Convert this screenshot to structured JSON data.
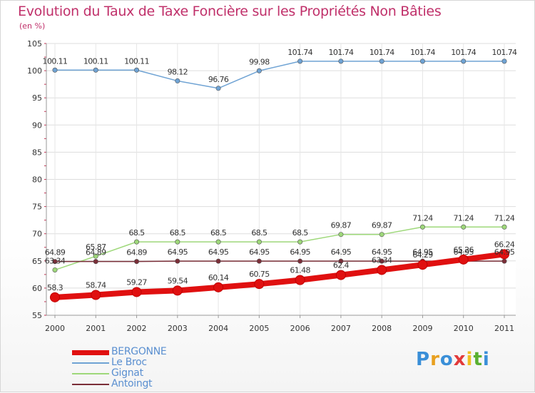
{
  "title": "Evolution du Taux de Taxe Foncière sur les Propriétés Non Bâties",
  "subtitle": "(en %)",
  "logo": {
    "text": "Proxiti",
    "letters": [
      "P",
      "r",
      "o",
      "x",
      "i",
      "t",
      "i"
    ],
    "colors": [
      "#3a8fd8",
      "#e8a020",
      "#3a8fd8",
      "#e23a3a",
      "#f0c020",
      "#5ab030",
      "#3a8fd8"
    ]
  },
  "chart_data": {
    "type": "line",
    "title": "Evolution du Taux de Taxe Foncière sur les Propriétés Non Bâties",
    "ylabel": "(en %)",
    "xlabel": "",
    "x": [
      "2000",
      "2001",
      "2002",
      "2003",
      "2004",
      "2005",
      "2006",
      "2007",
      "2008",
      "2009",
      "2010",
      "2011"
    ],
    "ylim": [
      55,
      105
    ],
    "yticks": [
      "55",
      "60",
      "65",
      "70",
      "75",
      "80",
      "85",
      "90",
      "95",
      "100",
      "105"
    ],
    "grid": true,
    "legend": "bottom-left",
    "series": [
      {
        "name": "BERGONNE",
        "color": "#e01010",
        "values": [
          58.3,
          58.74,
          59.27,
          59.54,
          60.14,
          60.75,
          61.48,
          62.4,
          63.34,
          64.29,
          65.26,
          66.24
        ],
        "labels": [
          "58.3",
          "58.74",
          "59.27",
          "59.54",
          "60.14",
          "60.75",
          "61.48",
          "62.4",
          "63.34",
          "64.29",
          "65.26",
          "66.24"
        ]
      },
      {
        "name": "Le Broc",
        "color": "#6fa3d4",
        "values": [
          100.11,
          100.11,
          100.11,
          98.12,
          96.76,
          99.98,
          101.74,
          101.74,
          101.74,
          101.74,
          101.74,
          101.74
        ],
        "labels": [
          "100.11",
          "100.11",
          "100.11",
          "98.12",
          "96.76",
          "99.98",
          "101.74",
          "101.74",
          "101.74",
          "101.74",
          "101.74",
          "101.74"
        ]
      },
      {
        "name": "Gignat",
        "color": "#9ed87a",
        "values": [
          63.34,
          65.87,
          68.5,
          68.5,
          68.5,
          68.5,
          68.5,
          69.87,
          69.87,
          71.24,
          71.24,
          71.24
        ],
        "labels": [
          "63.34",
          "65.87",
          "68.5",
          "68.5",
          "68.5",
          "68.5",
          "68.5",
          "69.87",
          "69.87",
          "71.24",
          "71.24",
          "71.24"
        ]
      },
      {
        "name": "Antoingt",
        "color": "#7a2e38",
        "values": [
          64.89,
          64.89,
          64.89,
          64.95,
          64.95,
          64.95,
          64.95,
          64.95,
          64.95,
          64.95,
          64.95,
          64.95
        ],
        "labels": [
          "64.89",
          "64.89",
          "64.89",
          "64.95",
          "64.95",
          "64.95",
          "64.95",
          "64.95",
          "64.95",
          "64.95",
          "64.95",
          "64.95"
        ]
      }
    ]
  }
}
